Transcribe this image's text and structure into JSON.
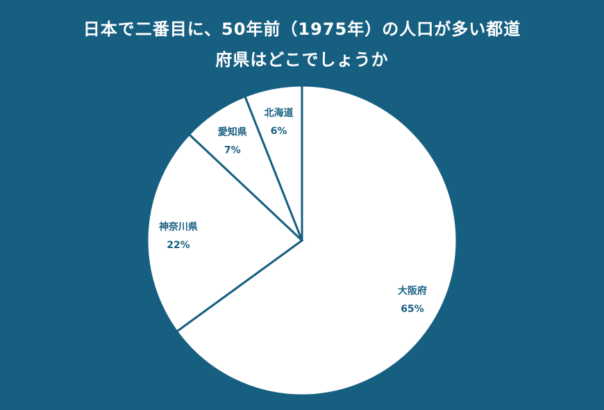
{
  "chart_data": {
    "type": "pie",
    "title_lines": [
      "日本で二番目に、50年前（1975年）の人口が多い都道",
      "府県はどこでしょうか"
    ],
    "slices": [
      {
        "name": "大阪府",
        "value": 65,
        "label": "65%"
      },
      {
        "name": "神奈川県",
        "value": 22,
        "label": "22%"
      },
      {
        "name": "愛知県",
        "value": 7,
        "label": "7%"
      },
      {
        "name": "北海道",
        "value": 6,
        "label": "6%"
      }
    ],
    "start": "12 o'clock",
    "direction": "clockwise"
  },
  "colors": {
    "background": "#175f81",
    "slice_fill": "#ffffff",
    "slice_border": "#175f81",
    "label_text": "#175f81",
    "title_text": "#ffffff"
  }
}
